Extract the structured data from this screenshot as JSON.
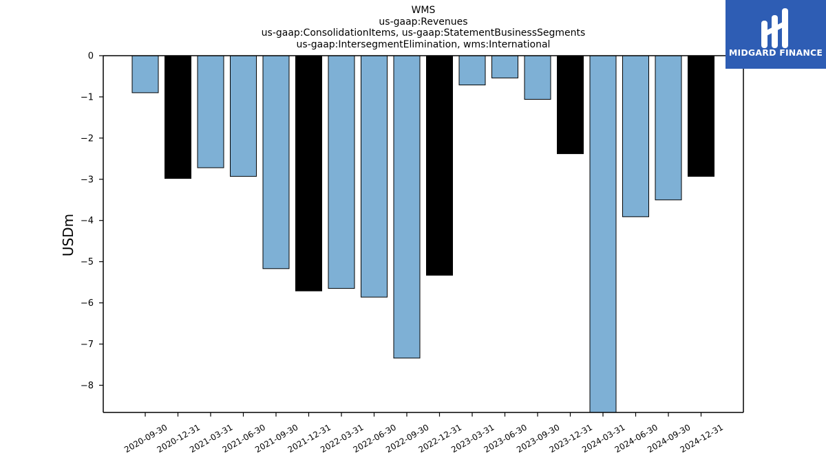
{
  "chart_data": {
    "type": "bar",
    "title_lines": [
      "WMS",
      "us-gaap:Revenues",
      "us-gaap:ConsolidationItems, us-gaap:StatementBusinessSegments",
      "us-gaap:IntersegmentElimination, wms:International"
    ],
    "ylabel": "USDm",
    "xlabel": "",
    "categories": [
      "2020-09-30",
      "2020-12-31",
      "2021-03-31",
      "2021-06-30",
      "2021-09-30",
      "2021-12-31",
      "2022-03-31",
      "2022-06-30",
      "2022-09-30",
      "2022-12-31",
      "2023-03-31",
      "2023-06-30",
      "2023-09-30",
      "2023-12-31",
      "2024-03-31",
      "2024-06-30",
      "2024-09-30",
      "2024-12-31"
    ],
    "values": [
      -0.9,
      -2.98,
      -2.72,
      -2.93,
      -5.17,
      -5.71,
      -5.65,
      -5.86,
      -7.34,
      -5.33,
      -0.71,
      -0.54,
      -1.06,
      -2.38,
      -8.9,
      -3.91,
      -3.5,
      -2.93
    ],
    "bar_colors": [
      "#7eb0d5",
      "#000000",
      "#7eb0d5",
      "#7eb0d5",
      "#7eb0d5",
      "#000000",
      "#7eb0d5",
      "#7eb0d5",
      "#7eb0d5",
      "#000000",
      "#7eb0d5",
      "#7eb0d5",
      "#7eb0d5",
      "#000000",
      "#7eb0d5",
      "#7eb0d5",
      "#7eb0d5",
      "#000000"
    ],
    "ylim": [
      -8.66,
      0
    ],
    "yticks": [
      0,
      -1,
      -2,
      -3,
      -4,
      -5,
      -6,
      -7,
      -8
    ],
    "ytick_labels": [
      "0",
      "−1",
      "−2",
      "−3",
      "−4",
      "−5",
      "−6",
      "−7",
      "−8"
    ],
    "grid": false,
    "colors": {
      "quarter_bar": "#7eb0d5",
      "year_end_bar": "#000000"
    }
  },
  "logo": {
    "text": "MIDGARD FINANCE",
    "background": "#2e5db4"
  }
}
